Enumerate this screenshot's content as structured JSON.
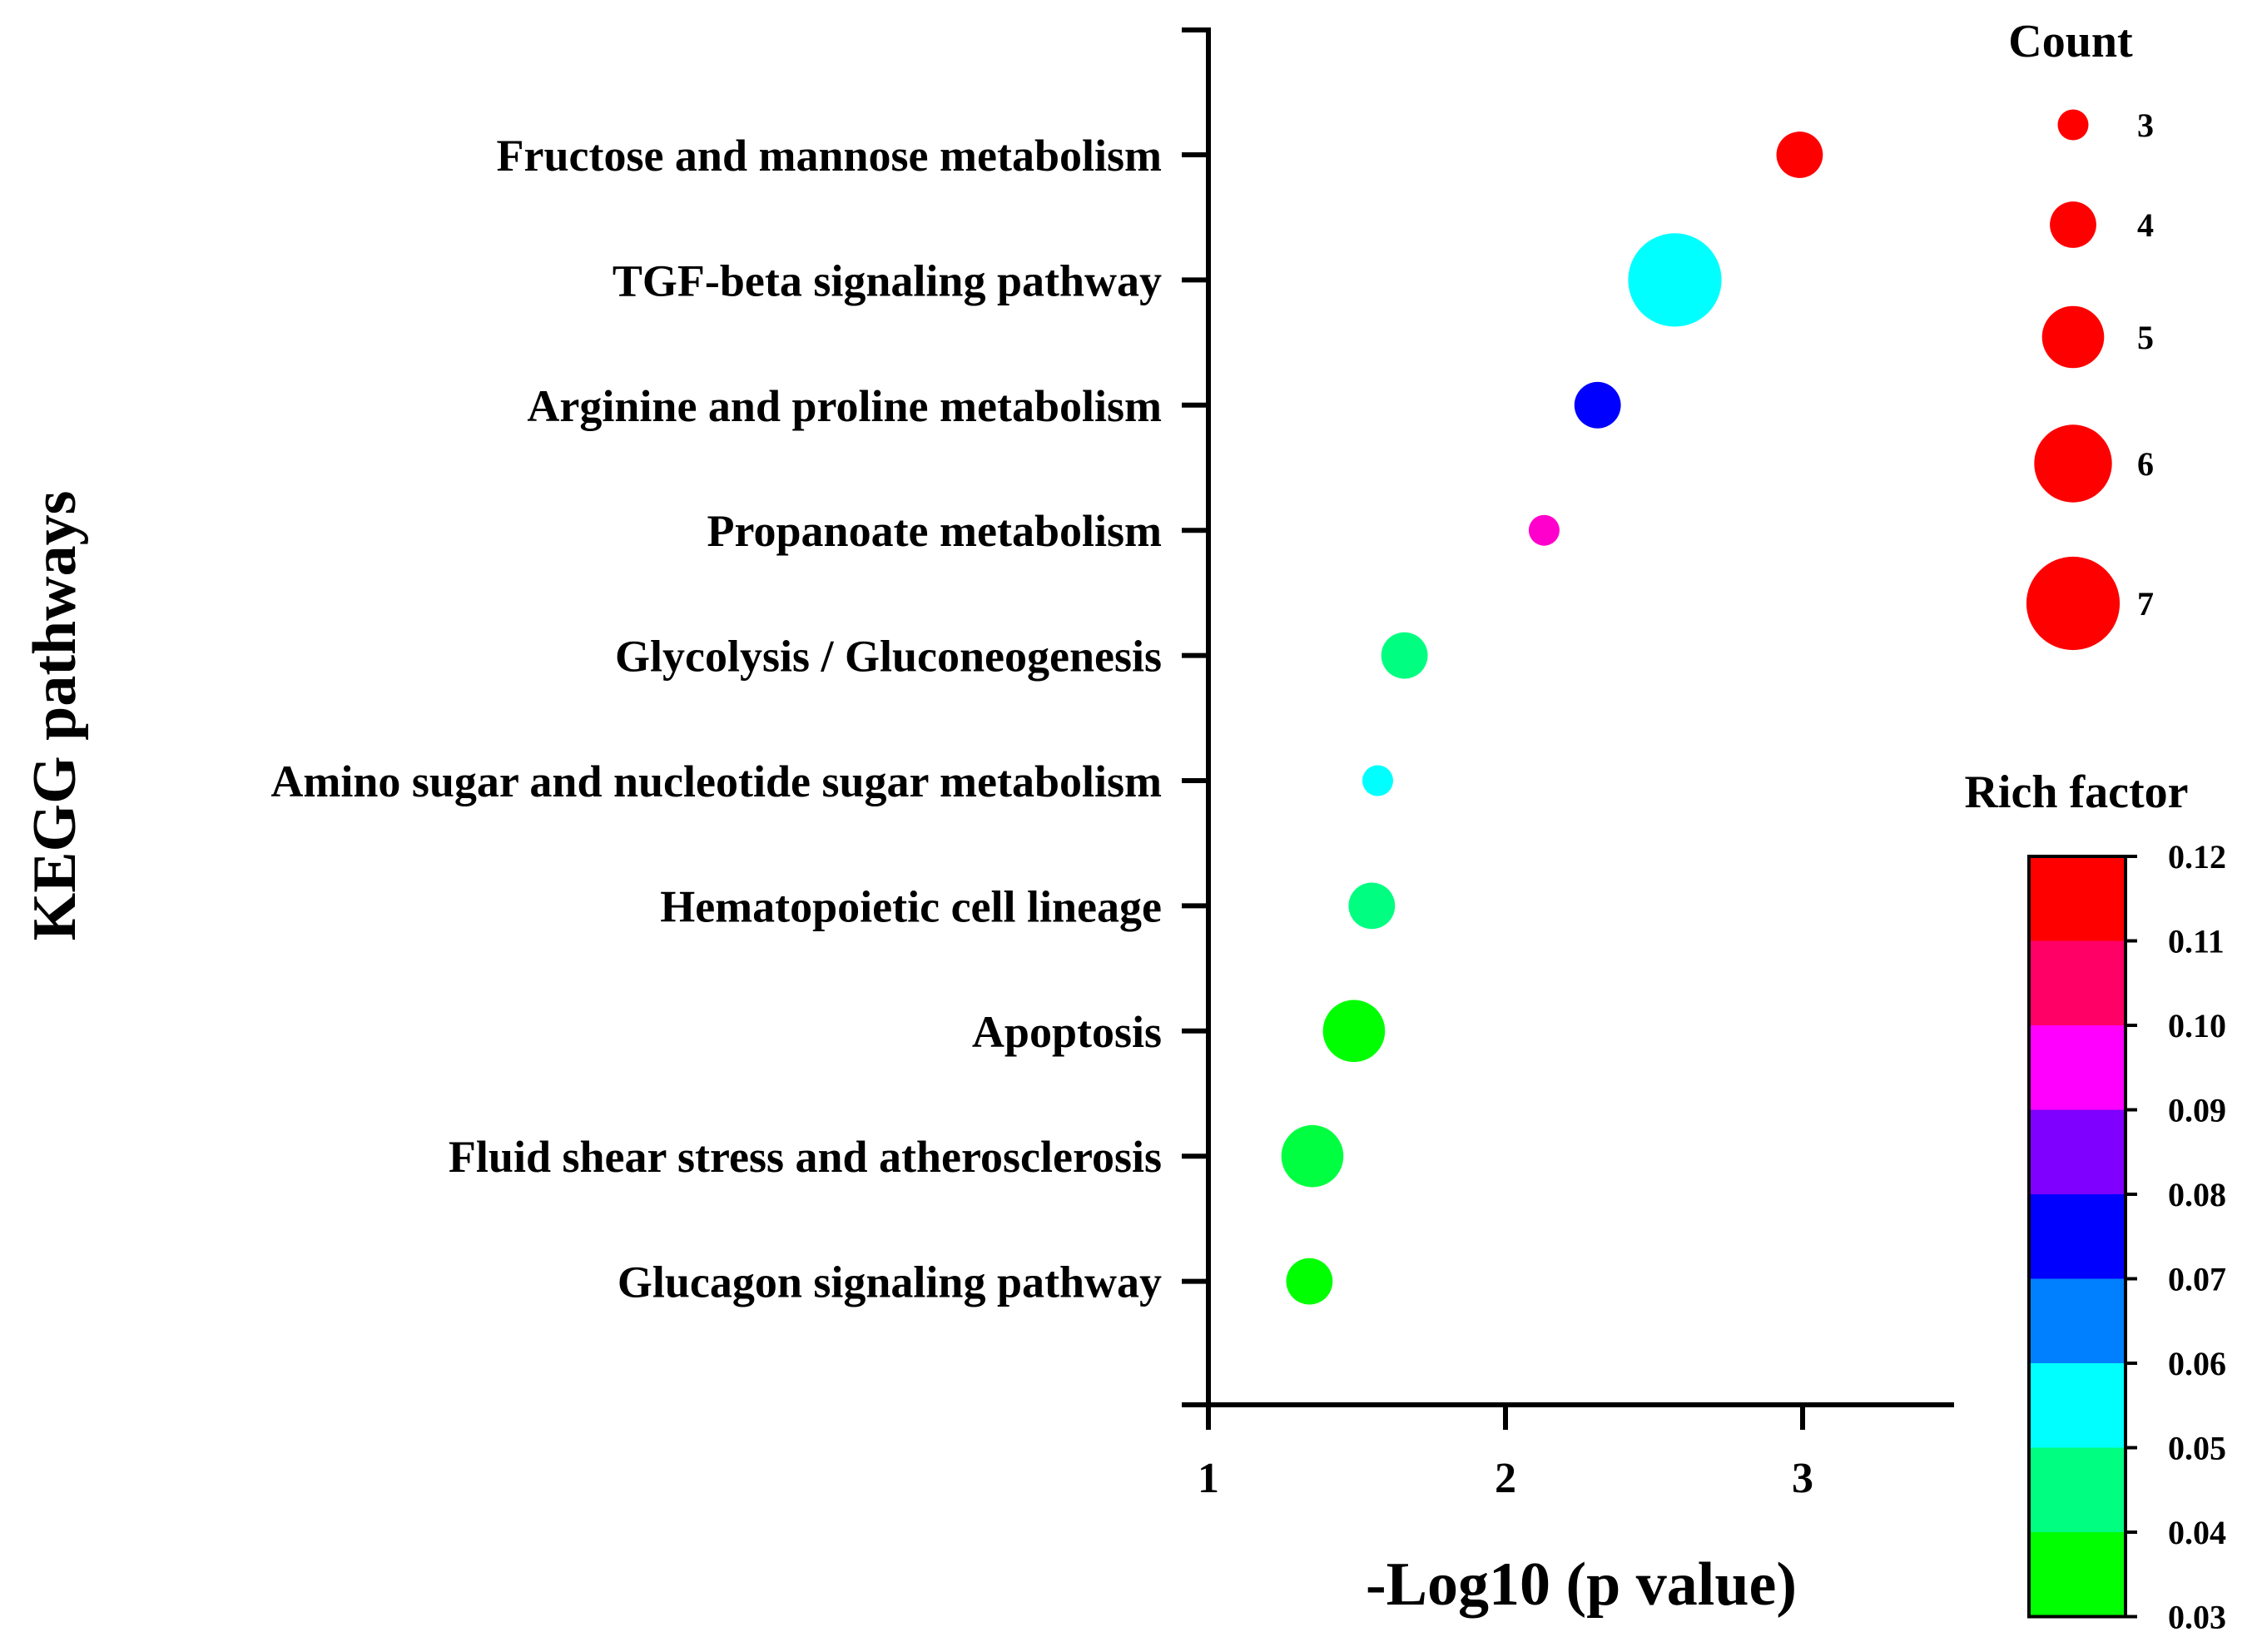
{
  "chart_data": {
    "type": "scatter",
    "subtype": "bubble",
    "xlabel": "-Log10 (p value)",
    "ylabel": "KEGG pathways",
    "xlim": [
      1,
      3.5
    ],
    "x_ticks": [
      "1",
      "2",
      "3"
    ],
    "categories": [
      "Fructose and mannose metabolism",
      "TGF-beta signaling pathway",
      "Arginine and proline metabolism",
      "Propanoate metabolism",
      "Glycolysis / Gluconeogenesis",
      "Amino sugar and nucleotide sugar metabolism",
      "Hematopoietic cell lineage",
      "Apoptosis",
      "Fluid shear stress and atherosclerosis",
      "Glucagon signaling pathway"
    ],
    "points": [
      {
        "pathway": "Fructose and mannose metabolism",
        "x": 2.99,
        "count": 4,
        "rich_factor": 0.12
      },
      {
        "pathway": "TGF-beta signaling pathway",
        "x": 2.57,
        "count": 7,
        "rich_factor": 0.05
      },
      {
        "pathway": "Arginine and proline metabolism",
        "x": 2.31,
        "count": 4,
        "rich_factor": 0.07
      },
      {
        "pathway": "Propanoate metabolism",
        "x": 2.13,
        "count": 3,
        "rich_factor": 0.1
      },
      {
        "pathway": "Glycolysis / Gluconeogenesis",
        "x": 1.66,
        "count": 4,
        "rich_factor": 0.04
      },
      {
        "pathway": "Amino sugar and nucleotide sugar metabolism",
        "x": 1.57,
        "count": 3,
        "rich_factor": 0.05
      },
      {
        "pathway": "Hematopoietic cell lineage",
        "x": 1.55,
        "count": 4,
        "rich_factor": 0.04
      },
      {
        "pathway": "Apoptosis",
        "x": 1.49,
        "count": 5,
        "rich_factor": 0.03
      },
      {
        "pathway": "Fluid shear stress and atherosclerosis",
        "x": 1.35,
        "count": 5,
        "rich_factor": 0.035
      },
      {
        "pathway": "Glucagon signaling pathway",
        "x": 1.34,
        "count": 4,
        "rich_factor": 0.03
      }
    ],
    "size_legend": {
      "title": "Count",
      "entries": [
        {
          "label": "3",
          "count": 3
        },
        {
          "label": "4",
          "count": 4
        },
        {
          "label": "5",
          "count": 5
        },
        {
          "label": "6",
          "count": 6
        },
        {
          "label": "7",
          "count": 7
        }
      ],
      "color": "#ff0000"
    },
    "color_legend": {
      "title": "Rich factor",
      "ticks": [
        "0.12",
        "0.11",
        "0.10",
        "0.09",
        "0.08",
        "0.07",
        "0.06",
        "0.05",
        "0.04",
        "0.03"
      ],
      "bands": [
        "#ff0000",
        "#ff0066",
        "#ff00ff",
        "#8000ff",
        "#0000ff",
        "#0080ff",
        "#00ffff",
        "#00ff80",
        "#00ff00"
      ],
      "range": [
        0.03,
        0.12
      ]
    }
  }
}
